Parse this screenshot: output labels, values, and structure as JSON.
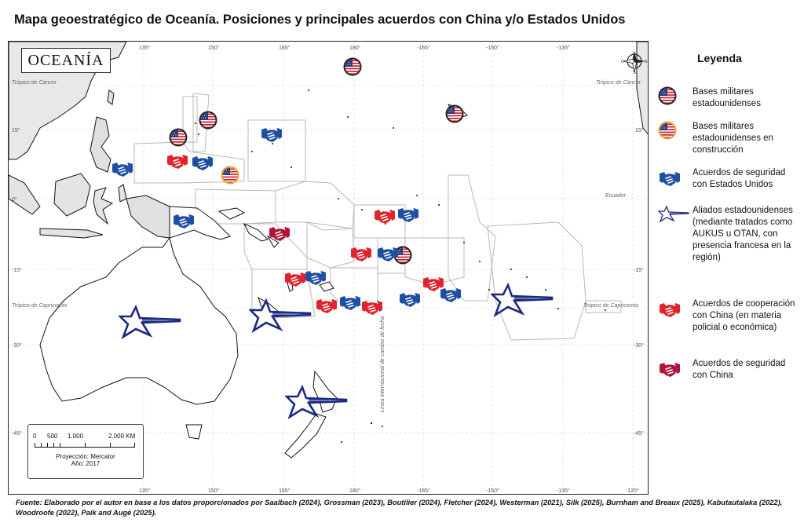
{
  "title": "Mapa geoestratégico de Oceanía. Posiciones y principales acuerdos con China y/o Estados Unidos",
  "map": {
    "name_label": "OCEANÍA",
    "graticule": {
      "lon_ticks_top": [
        "135°",
        "150°",
        "165°",
        "180°",
        "-165°",
        "-150°",
        "-135°"
      ],
      "lon_ticks_bottom": [
        "150°",
        "165°",
        "180°",
        "-165°",
        "-150°",
        "-135°",
        "-120°",
        "135°"
      ],
      "lat_ticks_left": [
        "15°",
        "0°",
        "-15°",
        "-30°",
        "-45°"
      ],
      "lat_ticks_right": [
        "15°",
        "-15°",
        "-30°",
        "-45°"
      ]
    },
    "reference_lines": {
      "tropic_cancer_left": "Trópico de Cáncer",
      "tropic_cancer_right": "Trópico de Cáncer",
      "equator": "Ecuador",
      "tropic_capricorn_left": "Trópico de Capricornio",
      "tropic_capricorn_right": "Trópico de Capricornio",
      "date_line": "Línea internacional de cambio de fecha"
    },
    "compass": {
      "north": "N",
      "south": "S",
      "east": "E",
      "west": "O"
    },
    "scale": {
      "labels": [
        "0",
        "500",
        "1.000",
        "2.000 KM"
      ],
      "projection": "Proyección: Mercator",
      "year": "Año: 2017"
    }
  },
  "legend": {
    "title": "Leyenda",
    "items": [
      {
        "icon": "us-flag-circle-icon",
        "label": "Bases militares estadounidenses"
      },
      {
        "icon": "us-flag-circle-gold-icon",
        "label": "Bases militares estadounidenses en construcción"
      },
      {
        "icon": "handshake-blue-icon",
        "label": "Acuerdos de seguridad con Estados Unidos"
      },
      {
        "icon": "star-outline-navy-icon",
        "label": "Aliados estadounidenses (mediante tratados como AUKUS u OTAN, con presencia francesa en la región)"
      },
      {
        "icon": "handshake-red-icon",
        "label": "Acuerdos de cooperación con China (en materia policial o económica)"
      },
      {
        "icon": "handshake-crimson-icon",
        "label": "Acuerdos de seguridad con China"
      }
    ]
  },
  "colors": {
    "us_blue": "#1f4fa3",
    "navy": "#1a2a80",
    "china_red": "#e0232c",
    "china_crimson": "#b0143a",
    "flag_border": "#222222",
    "flag_border_gold": "#f0a030",
    "land": "#ffffff",
    "land_gray": "#d8d8d8",
    "eez_outline": "#b8b8b8"
  },
  "source": "Fuente:  Elaborado por el autor en base a los datos proporcionados por Saalbach (2024), Grossman (2023), Boutilier (2024), Fletcher (2024), Westerman (2021), Silk (2025), Burnham and Breaux (2025), Kabutautalaka (2022), Woodroofe (2022), Paik and Augé (2025)."
}
